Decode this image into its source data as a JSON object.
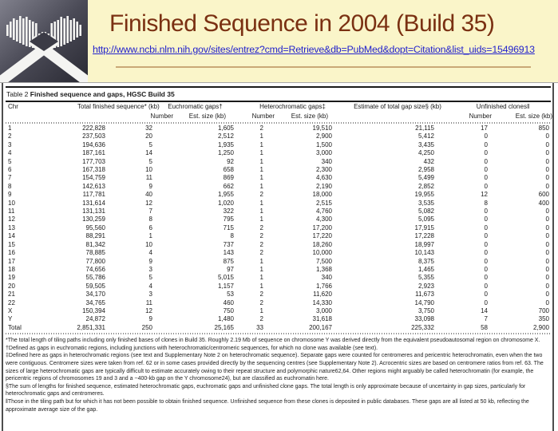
{
  "slide": {
    "title": "Finished Sequence in 2004 (Build 35)",
    "url": "http://www.ncbi.nlm.nih.gov/sites/entrez?cmd=Retrieve&db=PubMed&dopt=Citation&list_uids=15496913",
    "logo_icon": "genome-center-logo",
    "colors": {
      "background": "#faf5c9",
      "title": "#7a3012",
      "link": "#2323cc",
      "separator": "#c9a877",
      "logo_dark": "#3b3b46"
    }
  },
  "table": {
    "caption_prefix": "Table 2",
    "caption_title": " Finished sequence and gaps, HGSC Build 35",
    "columns": {
      "chr": "Chr",
      "total_finished": "Total finished sequence* (kb)",
      "euchromatic": "Euchromatic gaps†",
      "heterochromatic": "Heterochromatic gaps‡",
      "total_gap": "Estimate of total gap size§ (kb)",
      "unfinished": "Unfinished clones‖",
      "number": "Number",
      "est_size": "Est. size (kb)"
    },
    "rows": [
      [
        "1",
        "222,828",
        "32",
        "1,605",
        "2",
        "19,510",
        "21,115",
        "17",
        "850"
      ],
      [
        "2",
        "237,503",
        "20",
        "2,512",
        "1",
        "2,900",
        "5,412",
        "0",
        "0"
      ],
      [
        "3",
        "194,636",
        "5",
        "1,935",
        "1",
        "1,500",
        "3,435",
        "0",
        "0"
      ],
      [
        "4",
        "187,161",
        "14",
        "1,250",
        "1",
        "3,000",
        "4,250",
        "0",
        "0"
      ],
      [
        "5",
        "177,703",
        "5",
        "92",
        "1",
        "340",
        "432",
        "0",
        "0"
      ],
      [
        "6",
        "167,318",
        "10",
        "658",
        "1",
        "2,300",
        "2,958",
        "0",
        "0"
      ],
      [
        "7",
        "154,759",
        "11",
        "869",
        "1",
        "4,630",
        "5,499",
        "0",
        "0"
      ],
      [
        "8",
        "142,613",
        "9",
        "662",
        "1",
        "2,190",
        "2,852",
        "0",
        "0"
      ],
      [
        "9",
        "117,781",
        "40",
        "1,955",
        "2",
        "18,000",
        "19,955",
        "12",
        "600"
      ],
      [
        "10",
        "131,614",
        "12",
        "1,020",
        "1",
        "2,515",
        "3,535",
        "8",
        "400"
      ],
      [
        "11",
        "131,131",
        "7",
        "322",
        "1",
        "4,760",
        "5,082",
        "0",
        "0"
      ],
      [
        "12",
        "130,259",
        "8",
        "795",
        "1",
        "4,300",
        "5,095",
        "0",
        "0"
      ],
      [
        "13",
        "95,560",
        "6",
        "715",
        "2",
        "17,200",
        "17,915",
        "0",
        "0"
      ],
      [
        "14",
        "88,291",
        "1",
        "8",
        "2",
        "17,220",
        "17,228",
        "0",
        "0"
      ],
      [
        "15",
        "81,342",
        "10",
        "737",
        "2",
        "18,260",
        "18,997",
        "0",
        "0"
      ],
      [
        "16",
        "78,885",
        "4",
        "143",
        "2",
        "10,000",
        "10,143",
        "0",
        "0"
      ],
      [
        "17",
        "77,800",
        "9",
        "875",
        "1",
        "7,500",
        "8,375",
        "0",
        "0"
      ],
      [
        "18",
        "74,656",
        "3",
        "97",
        "1",
        "1,368",
        "1,465",
        "0",
        "0"
      ],
      [
        "19",
        "55,786",
        "5",
        "5,015",
        "1",
        "340",
        "5,355",
        "0",
        "0"
      ],
      [
        "20",
        "59,505",
        "4",
        "1,157",
        "1",
        "1,766",
        "2,923",
        "0",
        "0"
      ],
      [
        "21",
        "34,170",
        "3",
        "53",
        "2",
        "11,620",
        "11,673",
        "0",
        "0"
      ],
      [
        "22",
        "34,765",
        "11",
        "460",
        "2",
        "14,330",
        "14,790",
        "0",
        "0"
      ],
      [
        "X",
        "150,394",
        "12",
        "750",
        "1",
        "3,000",
        "3,750",
        "14",
        "700"
      ],
      [
        "Y",
        "24,872",
        "9",
        "1,480",
        "2",
        "31,618",
        "33,098",
        "7",
        "350"
      ],
      [
        "Total",
        "2,851,331",
        "250",
        "25,165",
        "33",
        "200,167",
        "225,332",
        "58",
        "2,900"
      ]
    ],
    "footnotes": [
      "*The total length of tiling paths including only finished bases of clones in Build 35. Roughly 2.19 Mb of sequence on chromosome Y was derived directly from the equivalent pseudoautosomal region on chromosome X.",
      "†Defined as gaps in euchromatic regions, including junctions with heterochromatic/centromeric sequences, for which no clone was available (see text).",
      "‡Defined here as gaps in heterochromatic regions (see text and Supplementary Note 2 on heterochromatic sequence). Separate gaps were counted for centromeres and pericentric heterochromatin, even when the two were contiguous. Centromere sizes were taken from ref. 62 or in some cases provided directly by the sequencing centres (see Supplementary Note 2). Acrocentric sizes are based on centromere ratios from ref. 63. The sizes of large heterochromatic gaps are typically difficult to estimate accurately owing to their repeat structure and polymorphic nature62,64. Other regions might arguably be called heterochromatin (for example, the pericentric regions of chromosomes 19 and 3 and a ~400-kb gap on the Y chromosome24), but are classified as euchromatin here.",
      "§The sum of lengths for finished sequence, estimated heterochromatic gaps, euchromatic gaps and unfinished clone gaps. The total length is only approximate because of uncertainty in gap sizes, particularly for heterochromatic gaps and centromeres.",
      "‖Those in the tiling path but for which it has not been possible to obtain finished sequence. Unfinished sequence from these clones is deposited in public databases. These gaps are all listed at 50 kb, reflecting the approximate average size of the gap."
    ]
  }
}
